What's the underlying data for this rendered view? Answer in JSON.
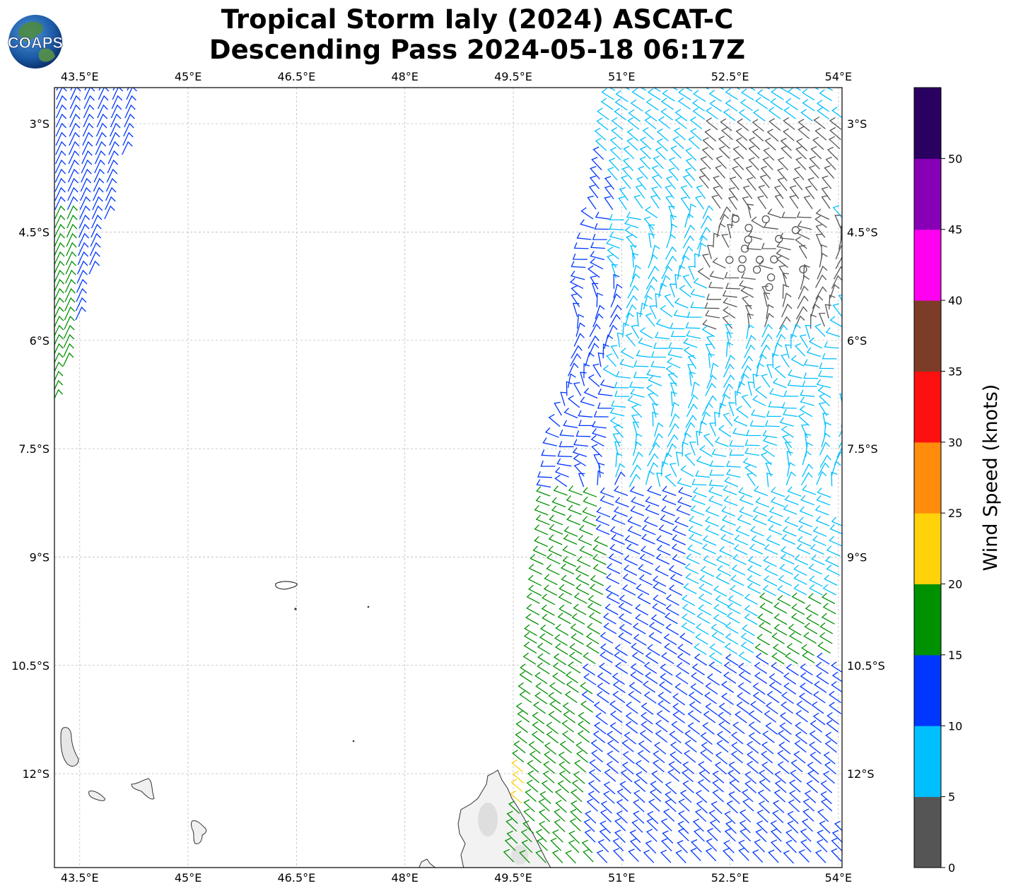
{
  "title": {
    "line1": "Tropical Storm Ialy (2024) ASCAT-C",
    "line2": "Descending Pass 2024-05-18 06:17Z"
  },
  "logo": {
    "text": "COAPS",
    "icon": "globe-icon"
  },
  "map": {
    "lon_ticks": [
      "43.5°E",
      "45°E",
      "46.5°E",
      "48°E",
      "49.5°E",
      "51°E",
      "52.5°E",
      "54°E"
    ],
    "lat_ticks": [
      "3°S",
      "4.5°S",
      "6°S",
      "7.5°S",
      "9°S",
      "10.5°S",
      "12°S"
    ],
    "lon_range": [
      43.15,
      54.05
    ],
    "lat_range": [
      -2.5,
      -13.3
    ],
    "grid": true,
    "land_color": "#f2f2f2",
    "coast_color": "#333333"
  },
  "colorbar": {
    "label": "Wind Speed (knots)",
    "ticks": [
      "0",
      "5",
      "10",
      "15",
      "20",
      "25",
      "30",
      "35",
      "40",
      "45",
      "50"
    ],
    "colors": [
      "#555555",
      "#00bfff",
      "#0037ff",
      "#009100",
      "#ffd20a",
      "#ff8c0a",
      "#ff1010",
      "#7d3c28",
      "#ff00f0",
      "#8800b5",
      "#2a0060"
    ]
  }
}
